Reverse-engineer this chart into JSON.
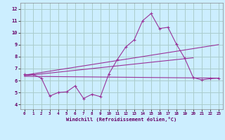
{
  "xlabel": "Windchill (Refroidissement éolien,°C)",
  "background_color": "#cceeff",
  "grid_color": "#aacccc",
  "line_color": "#993399",
  "xlim": [
    -0.5,
    23.5
  ],
  "ylim": [
    3.6,
    12.5
  ],
  "xticks": [
    0,
    1,
    2,
    3,
    4,
    5,
    6,
    7,
    8,
    9,
    10,
    11,
    12,
    13,
    14,
    15,
    16,
    17,
    18,
    19,
    20,
    21,
    22,
    23
  ],
  "yticks": [
    4,
    5,
    6,
    7,
    8,
    9,
    10,
    11,
    12
  ],
  "line1_x": [
    0,
    1,
    2,
    3,
    4,
    5,
    6,
    7,
    8,
    9,
    10,
    11,
    12,
    13,
    14,
    15,
    16,
    17,
    18,
    19,
    20,
    21,
    22,
    23
  ],
  "line1_y": [
    6.5,
    6.5,
    6.2,
    4.7,
    5.0,
    5.05,
    5.55,
    4.5,
    4.85,
    4.65,
    6.55,
    7.75,
    8.8,
    9.4,
    11.0,
    11.6,
    10.35,
    10.45,
    9.05,
    7.85,
    6.25,
    6.05,
    6.15,
    6.2
  ],
  "line2_x": [
    0,
    23
  ],
  "line2_y": [
    6.45,
    9.0
  ],
  "line3_x": [
    0,
    23
  ],
  "line3_y": [
    6.35,
    6.2
  ],
  "line4_x": [
    0,
    20
  ],
  "line4_y": [
    6.4,
    7.9
  ]
}
